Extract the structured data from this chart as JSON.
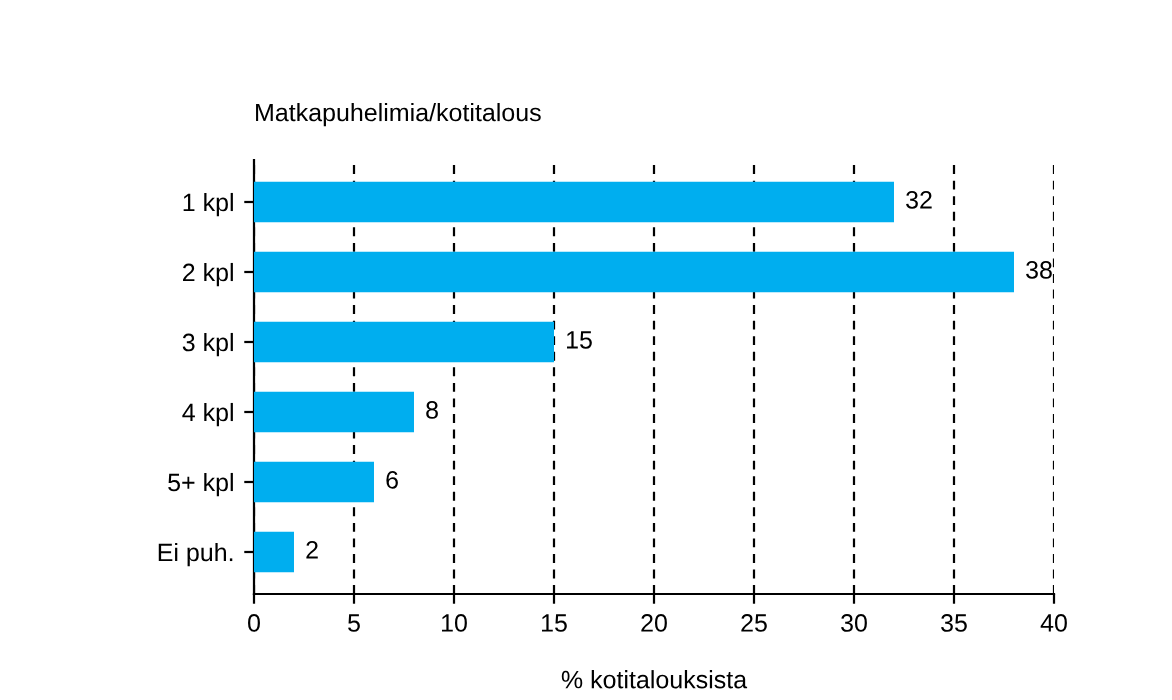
{
  "chart_data": {
    "type": "bar",
    "orientation": "horizontal",
    "title": "Matkapuhelimia/kotitalous",
    "xlabel": "% kotitalouksista",
    "categories": [
      "1 kpl",
      "2 kpl",
      "3 kpl",
      "4 kpl",
      "5+ kpl",
      "Ei puh."
    ],
    "values": [
      32,
      38,
      15,
      8,
      6,
      2
    ],
    "color": "#00aeef",
    "xlim": [
      0,
      40
    ],
    "xticks": [
      0,
      5,
      10,
      15,
      20,
      25,
      30,
      35,
      40
    ],
    "grid": "x",
    "line_style": "dashed",
    "data_labels": true
  }
}
